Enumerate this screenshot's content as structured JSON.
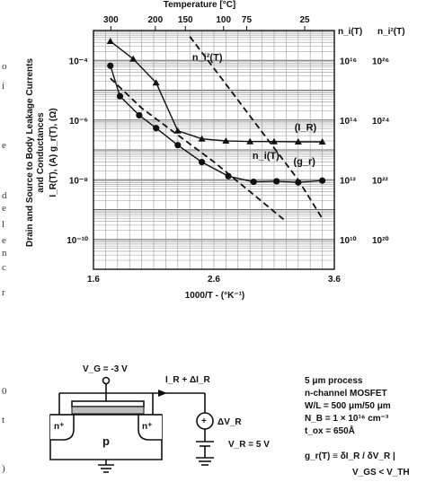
{
  "chart_data": {
    "type": "scatter",
    "top_axis": {
      "title": "Temperature [°C]",
      "ticks": [
        "300",
        "200",
        "150",
        "100",
        "75",
        "25"
      ],
      "values_c": [
        300,
        200,
        150,
        100,
        75,
        25
      ]
    },
    "xlabel": "1000/T - (°K⁻¹)",
    "xlim": [
      1.6,
      3.6
    ],
    "x_ticks": [
      "1.6",
      "2.6",
      "3.6"
    ],
    "ylabel_line1": "Drain and Source to Body Leakage Currents",
    "ylabel_line2": "and Conductances",
    "ylabel_line3": "I_R(T), (A)   g_r(T), (Ω)",
    "ylim_log10": [
      -11,
      -3
    ],
    "y_ticks": [
      "10⁻⁴",
      "10⁻⁶",
      "10⁻⁸",
      "10⁻¹⁰"
    ],
    "right_axis_1": {
      "title": "n_i(T)",
      "ticks": [
        "10¹⁶",
        "10¹⁴",
        "10¹²",
        "10¹⁰"
      ]
    },
    "right_axis_2": {
      "title": "n_i²(T)",
      "ticks": [
        "10²⁶",
        "10²⁴",
        "10²²",
        "10²⁰"
      ]
    },
    "series": [
      {
        "name": "I_R",
        "marker": "triangle",
        "style": "solid",
        "x": [
          1.74,
          1.93,
          2.12,
          2.3,
          2.5,
          2.7,
          2.9,
          3.1,
          3.3,
          3.5
        ],
        "log10y": [
          -3.36,
          -3.95,
          -4.75,
          -6.36,
          -6.63,
          -6.7,
          -6.72,
          -6.72,
          -6.73,
          -6.73
        ]
      },
      {
        "name": "g_r",
        "marker": "circle",
        "style": "solid",
        "x": [
          1.74,
          1.82,
          1.98,
          2.12,
          2.3,
          2.5,
          2.72,
          2.93,
          3.12,
          3.3,
          3.5
        ],
        "log10y": [
          -4.18,
          -5.2,
          -5.84,
          -6.27,
          -6.84,
          -7.41,
          -7.88,
          -8.07,
          -8.05,
          -8.09,
          -8.03
        ]
      },
      {
        "name": "n_i(T)",
        "marker": "none",
        "style": "dashed",
        "x": [
          1.74,
          2.0,
          2.3,
          2.6,
          2.9,
          3.2
        ],
        "log10y": [
          -4.6,
          -5.6,
          -6.5,
          -7.4,
          -8.4,
          -9.4
        ]
      },
      {
        "name": "n_i²(T)",
        "marker": "none",
        "style": "dashed",
        "x": [
          2.4,
          2.7,
          3.0,
          3.3,
          3.5
        ],
        "log10y": [
          -3.2,
          -4.8,
          -6.4,
          -8.0,
          -9.3
        ]
      }
    ],
    "curve_labels": [
      "n_i²(T)",
      "(I_R)",
      "n_i(T)",
      "(g_r)"
    ],
    "grid": true,
    "legend": "none"
  },
  "circuit": {
    "vg": "V_G = -3 V",
    "ir": "I_R + ΔI_R",
    "dvr": "ΔV_R",
    "vr": "V_R = 5 V",
    "n1": "n⁺",
    "n2": "n⁺",
    "p": "p",
    "plus": "+",
    "minus": "−"
  },
  "notes": {
    "l1": "5 μm process",
    "l2": "n-channel MOSFET",
    "l3": "W/L = 500 μm/50 μm",
    "l4": "N_B = 1 × 10¹⁶ cm⁻³",
    "l5": "t_ox = 650Å",
    "l6": "g_r(T) ≡ δI_R / δV_R |",
    "l7": "V_GS < V_TH"
  },
  "page_edge": [
    "o",
    "i",
    "e",
    "d",
    "e",
    "l",
    "e",
    "n",
    "c",
    "r",
    "0",
    "t",
    ")"
  ]
}
